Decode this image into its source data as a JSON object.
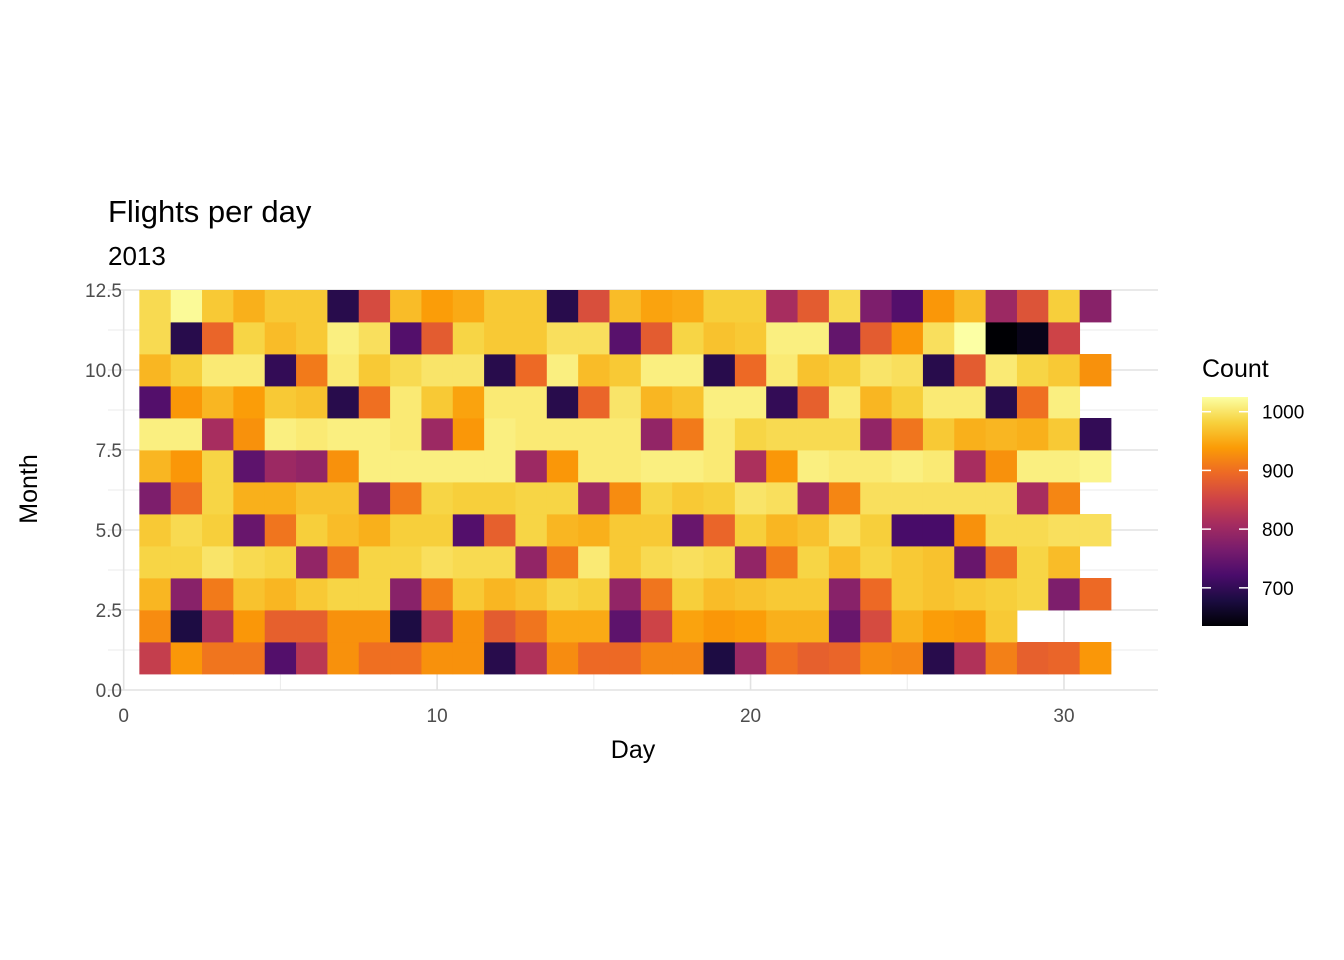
{
  "chart_data": {
    "type": "heatmap",
    "title": "Flights per day",
    "subtitle": "2013",
    "xlabel": "Day",
    "ylabel": "Month",
    "xlim": [
      -0.5,
      33
    ],
    "ylim": [
      0,
      12.5
    ],
    "x_ticks": [
      0,
      10,
      20,
      30
    ],
    "y_ticks": [
      0.0,
      2.5,
      5.0,
      7.5,
      10.0,
      12.5
    ],
    "y_tick_labels": [
      "0.0",
      "2.5",
      "5.0",
      "7.5",
      "10.0",
      "12.5"
    ],
    "grid": true,
    "legend": {
      "title": "Count",
      "position": "right",
      "min": 635,
      "max": 1025,
      "ticks": [
        700,
        800,
        900,
        1000
      ]
    },
    "colorscale": [
      "#000004",
      "#1b0c41",
      "#4a0c6b",
      "#781c6d",
      "#a52c60",
      "#cf4446",
      "#ed6925",
      "#fb9b06",
      "#f7d13d",
      "#fcffa4"
    ],
    "days": [
      1,
      2,
      3,
      4,
      5,
      6,
      7,
      8,
      9,
      10,
      11,
      12,
      13,
      14,
      15,
      16,
      17,
      18,
      19,
      20,
      21,
      22,
      23,
      24,
      25,
      26,
      27,
      28,
      29,
      30,
      31
    ],
    "months": [
      1,
      2,
      3,
      4,
      5,
      6,
      7,
      8,
      9,
      10,
      11,
      12
    ],
    "values": [
      [
        840,
        935,
        905,
        905,
        730,
        830,
        930,
        900,
        900,
        930,
        930,
        690,
        820,
        925,
        895,
        895,
        920,
        920,
        680,
        800,
        900,
        885,
        890,
        925,
        920,
        690,
        820,
        915,
        885,
        890,
        935
      ],
      [
        925,
        680,
        820,
        935,
        885,
        885,
        930,
        930,
        680,
        830,
        930,
        880,
        905,
        950,
        950,
        740,
        850,
        945,
        935,
        940,
        955,
        955,
        750,
        860,
        955,
        940,
        935,
        975,
        null,
        null,
        null
      ],
      [
        960,
        780,
        910,
        970,
        960,
        975,
        985,
        985,
        780,
        915,
        975,
        960,
        970,
        985,
        980,
        790,
        905,
        980,
        965,
        970,
        975,
        975,
        780,
        895,
        975,
        970,
        975,
        980,
        985,
        770,
        895
      ],
      [
        985,
        985,
        1000,
        990,
        985,
        790,
        905,
        985,
        985,
        995,
        990,
        990,
        790,
        910,
        1005,
        975,
        990,
        995,
        990,
        790,
        910,
        985,
        965,
        985,
        975,
        970,
        750,
        900,
        985,
        965,
        null
      ],
      [
        975,
        990,
        980,
        750,
        905,
        980,
        965,
        955,
        980,
        980,
        730,
        885,
        985,
        960,
        955,
        975,
        975,
        750,
        890,
        980,
        960,
        970,
        995,
        980,
        720,
        720,
        930,
        990,
        990,
        995,
        995
      ],
      [
        770,
        900,
        985,
        955,
        955,
        970,
        970,
        780,
        910,
        985,
        980,
        980,
        985,
        985,
        800,
        925,
        985,
        975,
        980,
        1000,
        995,
        800,
        920,
        995,
        995,
        995,
        995,
        995,
        810,
        920,
        null
      ],
      [
        960,
        935,
        985,
        740,
        800,
        790,
        930,
        1010,
        1010,
        1010,
        1010,
        1010,
        800,
        935,
        1005,
        1005,
        1010,
        1010,
        1005,
        815,
        935,
        1010,
        1005,
        1005,
        1010,
        1005,
        810,
        930,
        1010,
        1010,
        1015
      ],
      [
        1010,
        1010,
        810,
        930,
        1010,
        1005,
        1010,
        1010,
        1005,
        800,
        935,
        1010,
        1005,
        1005,
        1005,
        1005,
        790,
        910,
        1005,
        985,
        990,
        990,
        990,
        790,
        905,
        975,
        955,
        960,
        955,
        975,
        700
      ],
      [
        730,
        935,
        960,
        940,
        975,
        970,
        690,
        900,
        1005,
        975,
        945,
        1005,
        1005,
        690,
        890,
        1000,
        960,
        970,
        1010,
        1010,
        700,
        885,
        1005,
        960,
        980,
        1005,
        1005,
        690,
        900,
        1010,
        null
      ],
      [
        960,
        980,
        1005,
        1005,
        700,
        910,
        1005,
        975,
        990,
        1000,
        1000,
        690,
        895,
        1010,
        965,
        975,
        1010,
        1010,
        690,
        895,
        1005,
        970,
        980,
        1000,
        995,
        690,
        880,
        1005,
        985,
        975,
        930
      ],
      [
        990,
        690,
        890,
        985,
        965,
        975,
        1010,
        995,
        730,
        880,
        985,
        975,
        975,
        995,
        995,
        735,
        880,
        985,
        970,
        975,
        1010,
        1010,
        745,
        880,
        935,
        995,
        1025,
        635,
        650,
        850,
        null
      ],
      [
        990,
        1020,
        975,
        955,
        975,
        975,
        690,
        860,
        965,
        940,
        950,
        975,
        975,
        690,
        865,
        965,
        945,
        950,
        980,
        980,
        810,
        880,
        990,
        770,
        730,
        935,
        965,
        800,
        870,
        980,
        780
      ]
    ]
  }
}
